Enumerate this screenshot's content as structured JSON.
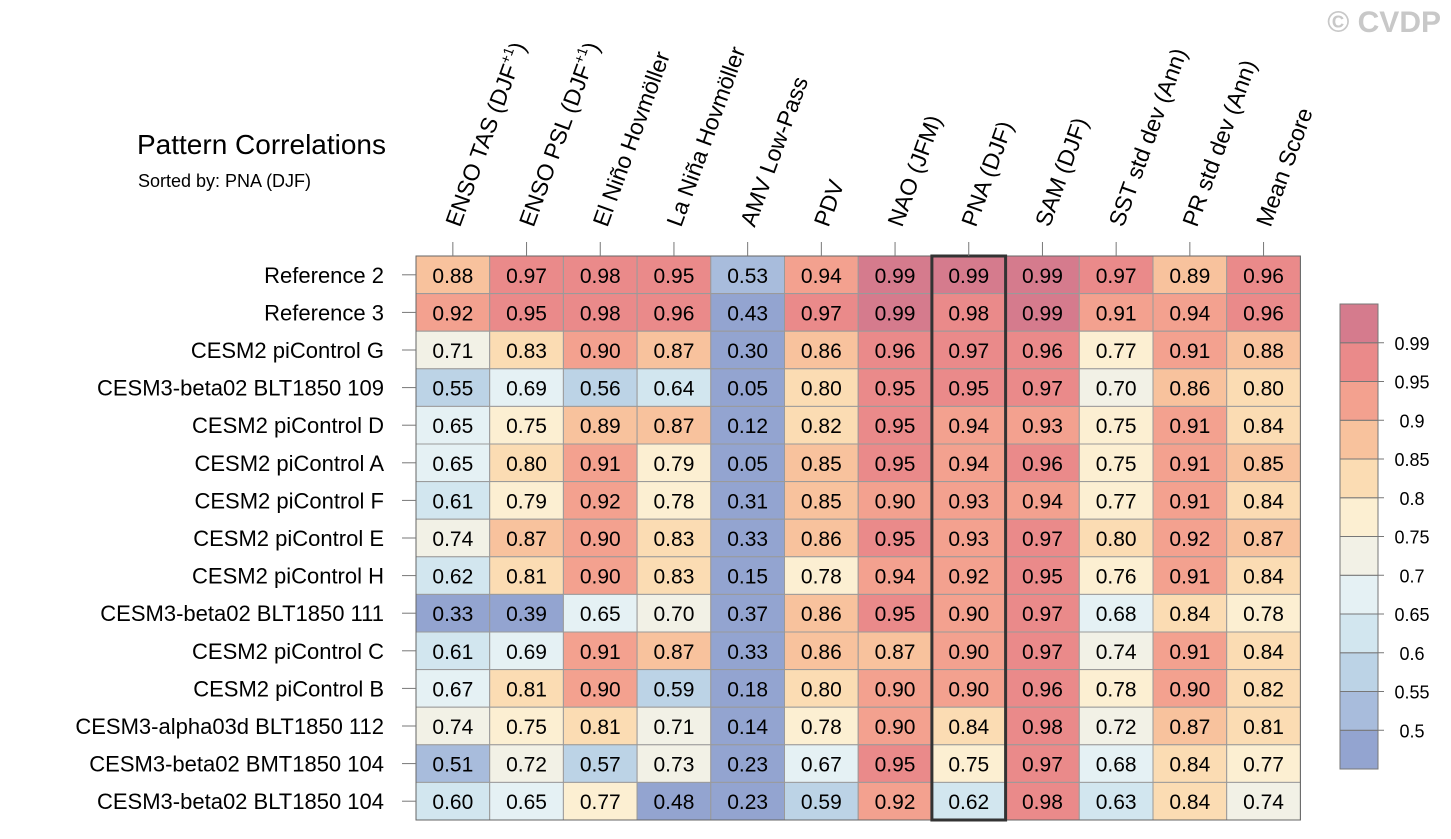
{
  "watermark": "© CVDP",
  "chart_data": {
    "type": "heatmap",
    "title": "Pattern Correlations",
    "subtitle": "Sorted by: PNA (DJF)",
    "highlighted_column": "PNA (DJF)",
    "columns": [
      {
        "name": "ENSO TAS (DJF+1)",
        "base": "ENSO TAS (DJF",
        "sup": "+1",
        "tail": ")"
      },
      {
        "name": "ENSO PSL (DJF+1)",
        "base": "ENSO PSL (DJF",
        "sup": "+1",
        "tail": ")"
      },
      {
        "name": "El Niño Hovmöller",
        "base": "El Niño Hovmöller"
      },
      {
        "name": "La Niña Hovmöller",
        "base": "La Niña Hovmöller"
      },
      {
        "name": "AMV Low-Pass",
        "base": "AMV Low-Pass"
      },
      {
        "name": "PDV",
        "base": "PDV"
      },
      {
        "name": "NAO (JFM)",
        "base": "NAO (JFM)"
      },
      {
        "name": "PNA (DJF)",
        "base": "PNA (DJF)"
      },
      {
        "name": "SAM (DJF)",
        "base": "SAM (DJF)"
      },
      {
        "name": "SST std dev (Ann)",
        "base": "SST std dev (Ann)"
      },
      {
        "name": "PR std dev (Ann)",
        "base": "PR std dev (Ann)"
      },
      {
        "name": "Mean Score",
        "base": "Mean Score"
      }
    ],
    "rows": [
      "Reference 2",
      "Reference 3",
      "CESM2 piControl G",
      "CESM3-beta02 BLT1850 109",
      "CESM2 piControl D",
      "CESM2 piControl A",
      "CESM2 piControl F",
      "CESM2 piControl E",
      "CESM2 piControl H",
      "CESM3-beta02 BLT1850 111",
      "CESM2 piControl C",
      "CESM2 piControl B",
      "CESM3-alpha03d BLT1850 112",
      "CESM3-beta02 BMT1850 104",
      "CESM3-beta02 BLT1850 104"
    ],
    "values": [
      [
        "0.88",
        "0.97",
        "0.98",
        "0.95",
        "0.53",
        "0.94",
        "0.99",
        "0.99",
        "0.99",
        "0.97",
        "0.89",
        "0.96"
      ],
      [
        "0.92",
        "0.95",
        "0.98",
        "0.96",
        "0.43",
        "0.97",
        "0.99",
        "0.98",
        "0.99",
        "0.91",
        "0.94",
        "0.96"
      ],
      [
        "0.71",
        "0.83",
        "0.90",
        "0.87",
        "0.30",
        "0.86",
        "0.96",
        "0.97",
        "0.96",
        "0.77",
        "0.91",
        "0.88"
      ],
      [
        "0.55",
        "0.69",
        "0.56",
        "0.64",
        "0.05",
        "0.80",
        "0.95",
        "0.95",
        "0.97",
        "0.70",
        "0.86",
        "0.80"
      ],
      [
        "0.65",
        "0.75",
        "0.89",
        "0.87",
        "0.12",
        "0.82",
        "0.95",
        "0.94",
        "0.93",
        "0.75",
        "0.91",
        "0.84"
      ],
      [
        "0.65",
        "0.80",
        "0.91",
        "0.79",
        "0.05",
        "0.85",
        "0.95",
        "0.94",
        "0.96",
        "0.75",
        "0.91",
        "0.85"
      ],
      [
        "0.61",
        "0.79",
        "0.92",
        "0.78",
        "0.31",
        "0.85",
        "0.90",
        "0.93",
        "0.94",
        "0.77",
        "0.91",
        "0.84"
      ],
      [
        "0.74",
        "0.87",
        "0.90",
        "0.83",
        "0.33",
        "0.86",
        "0.95",
        "0.93",
        "0.97",
        "0.80",
        "0.92",
        "0.87"
      ],
      [
        "0.62",
        "0.81",
        "0.90",
        "0.83",
        "0.15",
        "0.78",
        "0.94",
        "0.92",
        "0.95",
        "0.76",
        "0.91",
        "0.84"
      ],
      [
        "0.33",
        "0.39",
        "0.65",
        "0.70",
        "0.37",
        "0.86",
        "0.95",
        "0.90",
        "0.97",
        "0.68",
        "0.84",
        "0.78"
      ],
      [
        "0.61",
        "0.69",
        "0.91",
        "0.87",
        "0.33",
        "0.86",
        "0.87",
        "0.90",
        "0.97",
        "0.74",
        "0.91",
        "0.84"
      ],
      [
        "0.67",
        "0.81",
        "0.90",
        "0.59",
        "0.18",
        "0.80",
        "0.90",
        "0.90",
        "0.96",
        "0.78",
        "0.90",
        "0.82"
      ],
      [
        "0.74",
        "0.75",
        "0.81",
        "0.71",
        "0.14",
        "0.78",
        "0.90",
        "0.84",
        "0.98",
        "0.72",
        "0.87",
        "0.81"
      ],
      [
        "0.51",
        "0.72",
        "0.57",
        "0.73",
        "0.23",
        "0.67",
        "0.95",
        "0.75",
        "0.97",
        "0.68",
        "0.84",
        "0.77"
      ],
      [
        "0.60",
        "0.65",
        "0.77",
        "0.48",
        "0.23",
        "0.59",
        "0.92",
        "0.62",
        "0.98",
        "0.63",
        "0.84",
        "0.74"
      ]
    ],
    "colorbar": {
      "levels": [
        "0.5",
        "0.55",
        "0.6",
        "0.65",
        "0.7",
        "0.75",
        "0.8",
        "0.85",
        "0.9",
        "0.95",
        "0.99"
      ],
      "colors": [
        "#93a4d0",
        "#a8bcdc",
        "#bcd3e6",
        "#d2e6ef",
        "#e5f1f4",
        "#f2f1e6",
        "#fcefd2",
        "#fbdcb3",
        "#f8c29d",
        "#f3a18f",
        "#ea8a8a",
        "#d57b8d"
      ]
    }
  }
}
